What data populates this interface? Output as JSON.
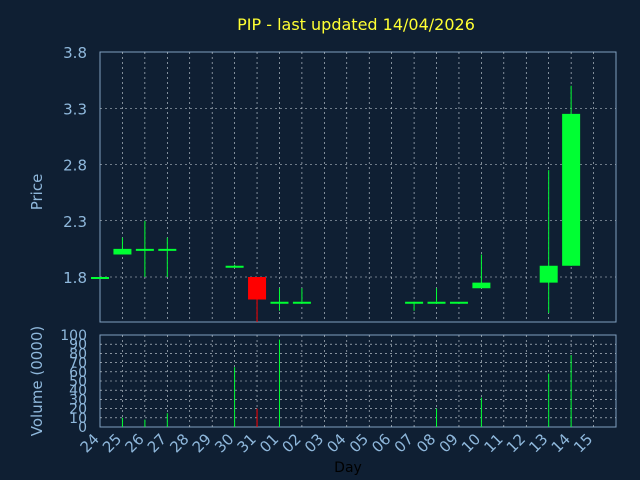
{
  "chart_data": {
    "type": "candlestick",
    "title": "PIP - last updated 14/04/2026",
    "price_axis": {
      "label": "Price",
      "ylim": [
        1.4,
        3.8
      ],
      "ticks": [
        "1.8",
        "2.3",
        "2.8",
        "3.3",
        "3.8"
      ],
      "tick_values": [
        1.8,
        2.3,
        2.8,
        3.3,
        3.8
      ]
    },
    "volume_axis": {
      "label": "Volume (0000)",
      "ylim": [
        0,
        100
      ],
      "ticks": [
        "0",
        "10",
        "20",
        "30",
        "40",
        "50",
        "60",
        "70",
        "80",
        "90",
        "100"
      ]
    },
    "xlabel": "Day",
    "x_ticks": [
      "24",
      "25",
      "26",
      "27",
      "28",
      "29",
      "30",
      "31",
      "01",
      "02",
      "03",
      "04",
      "05",
      "06",
      "07",
      "08",
      "09",
      "10",
      "11",
      "12",
      "13",
      "14",
      "15"
    ],
    "grid": true,
    "colors": {
      "background": "#0f1f33",
      "up": "#00ff33",
      "down": "#ff0000",
      "grid": "#cfd8e0",
      "axis": "#7f9fbf",
      "title": "#ffff33"
    },
    "candles": [
      {
        "day": "24",
        "open": 1.8,
        "high": 1.8,
        "low": 1.8,
        "close": 1.8,
        "volume": 0
      },
      {
        "day": "25",
        "open": 2.0,
        "high": 2.15,
        "low": 2.0,
        "close": 2.05,
        "volume": 10
      },
      {
        "day": "26",
        "open": 2.05,
        "high": 2.3,
        "low": 1.8,
        "close": 2.05,
        "volume": 8
      },
      {
        "day": "27",
        "open": 2.05,
        "high": 2.15,
        "low": 1.8,
        "close": 2.05,
        "volume": 15
      },
      {
        "day": "30",
        "open": 1.9,
        "high": 1.91,
        "low": 1.89,
        "close": 1.9,
        "volume": 65
      },
      {
        "day": "31",
        "open": 1.8,
        "high": 1.8,
        "low": 1.4,
        "close": 1.6,
        "volume": 20
      },
      {
        "day": "01",
        "open": 1.58,
        "high": 1.7,
        "low": 1.5,
        "close": 1.58,
        "volume": 95
      },
      {
        "day": "02",
        "open": 1.58,
        "high": 1.7,
        "low": 1.58,
        "close": 1.58,
        "volume": 0
      },
      {
        "day": "07",
        "open": 1.58,
        "high": 1.58,
        "low": 1.5,
        "close": 1.58,
        "volume": 0
      },
      {
        "day": "08",
        "open": 1.58,
        "high": 1.7,
        "low": 1.58,
        "close": 1.58,
        "volume": 20
      },
      {
        "day": "09",
        "open": 1.58,
        "high": 1.58,
        "low": 1.58,
        "close": 1.58,
        "volume": 0
      },
      {
        "day": "10",
        "open": 1.7,
        "high": 2.0,
        "low": 1.7,
        "close": 1.75,
        "volume": 32
      },
      {
        "day": "13",
        "open": 1.75,
        "high": 2.75,
        "low": 1.48,
        "close": 1.9,
        "volume": 58
      },
      {
        "day": "14",
        "open": 1.9,
        "high": 3.5,
        "low": 1.9,
        "close": 3.25,
        "volume": 78
      }
    ]
  }
}
